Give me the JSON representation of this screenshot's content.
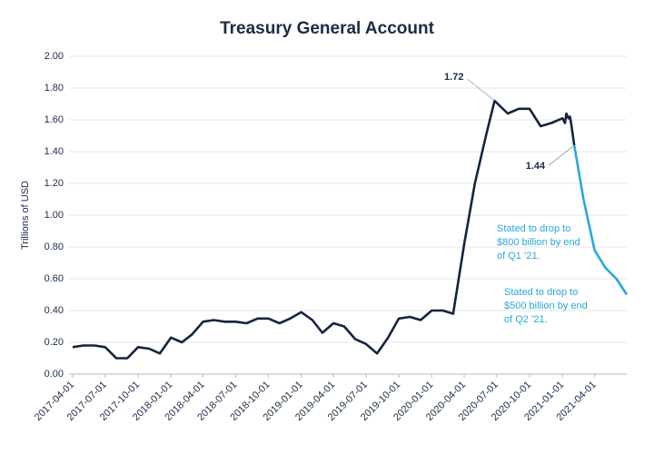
{
  "chart_data": {
    "type": "line",
    "title": "Treasury General Account",
    "y_label": "Trillions of USD",
    "ylim": [
      0,
      2
    ],
    "yticks": [
      {
        "value": 0,
        "label": "0.00"
      },
      {
        "value": 0.2,
        "label": "0.20"
      },
      {
        "value": 0.4,
        "label": "0.40"
      },
      {
        "value": 0.6,
        "label": "0.60"
      },
      {
        "value": 0.8,
        "label": "0.80"
      },
      {
        "value": 1,
        "label": "1.00"
      },
      {
        "value": 1.2,
        "label": "1.20"
      },
      {
        "value": 1.4,
        "label": "1.40"
      },
      {
        "value": 1.6,
        "label": "1.60"
      },
      {
        "value": 1.8,
        "label": "1.80"
      },
      {
        "value": 2,
        "label": "2.00"
      }
    ],
    "xlim": [
      "2017-04-01",
      "2021-06-30"
    ],
    "xticks": [
      "2017-04-01",
      "2017-07-01",
      "2017-10-01",
      "2018-01-01",
      "2018-04-01",
      "2018-07-01",
      "2018-10-01",
      "2019-01-01",
      "2019-04-01",
      "2019-07-01",
      "2019-10-01",
      "2020-01-01",
      "2020-04-01",
      "2020-07-01",
      "2020-10-01",
      "2021-01-01",
      "2021-04-01"
    ],
    "grid": true,
    "series": [
      {
        "color": "#15243f",
        "x": [
          "2017-04-01",
          "2017-05-01",
          "2017-06-01",
          "2017-07-01",
          "2017-08-01",
          "2017-09-01",
          "2017-10-01",
          "2017-11-01",
          "2017-12-01",
          "2018-01-01",
          "2018-02-01",
          "2018-03-01",
          "2018-04-01",
          "2018-05-01",
          "2018-06-01",
          "2018-07-01",
          "2018-08-01",
          "2018-09-01",
          "2018-10-01",
          "2018-11-01",
          "2018-12-01",
          "2019-01-01",
          "2019-02-01",
          "2019-03-01",
          "2019-04-01",
          "2019-05-01",
          "2019-06-01",
          "2019-07-01",
          "2019-08-01",
          "2019-09-01",
          "2019-10-01",
          "2019-11-01",
          "2019-12-01",
          "2020-01-01",
          "2020-02-01",
          "2020-03-01",
          "2020-04-01",
          "2020-05-01",
          "2020-06-01",
          "2020-06-25",
          "2020-08-01",
          "2020-09-01",
          "2020-10-01",
          "2020-11-01",
          "2020-12-01",
          "2021-01-01",
          "2021-01-08",
          "2021-01-12",
          "2021-01-18",
          "2021-01-22",
          "2021-01-26",
          "2021-02-03"
        ],
        "values": [
          0.17,
          0.18,
          0.18,
          0.17,
          0.1,
          0.1,
          0.17,
          0.16,
          0.13,
          0.23,
          0.2,
          0.25,
          0.33,
          0.34,
          0.33,
          0.33,
          0.32,
          0.35,
          0.35,
          0.32,
          0.35,
          0.39,
          0.34,
          0.26,
          0.32,
          0.3,
          0.22,
          0.19,
          0.13,
          0.23,
          0.35,
          0.36,
          0.34,
          0.4,
          0.4,
          0.38,
          0.82,
          1.2,
          1.5,
          1.72,
          1.64,
          1.67,
          1.67,
          1.56,
          1.58,
          1.61,
          1.58,
          1.64,
          1.61,
          1.62,
          1.57,
          1.44
        ]
      },
      {
        "color": "#2aa8d8",
        "x": [
          "2021-02-03",
          "2021-03-01",
          "2021-04-01",
          "2021-05-01",
          "2021-06-01",
          "2021-06-30"
        ],
        "values": [
          1.44,
          1.1,
          0.78,
          0.67,
          0.6,
          0.5
        ]
      }
    ],
    "annotations": [
      {
        "text": "1.72"
      },
      {
        "text": "1.44"
      },
      {
        "lines": [
          "Stated to drop to",
          "$800 billion by end",
          "of Q1 ’21."
        ]
      },
      {
        "lines": [
          "Stated to drop to",
          "$500 billion by end",
          "of Q2 ’21."
        ]
      }
    ]
  }
}
